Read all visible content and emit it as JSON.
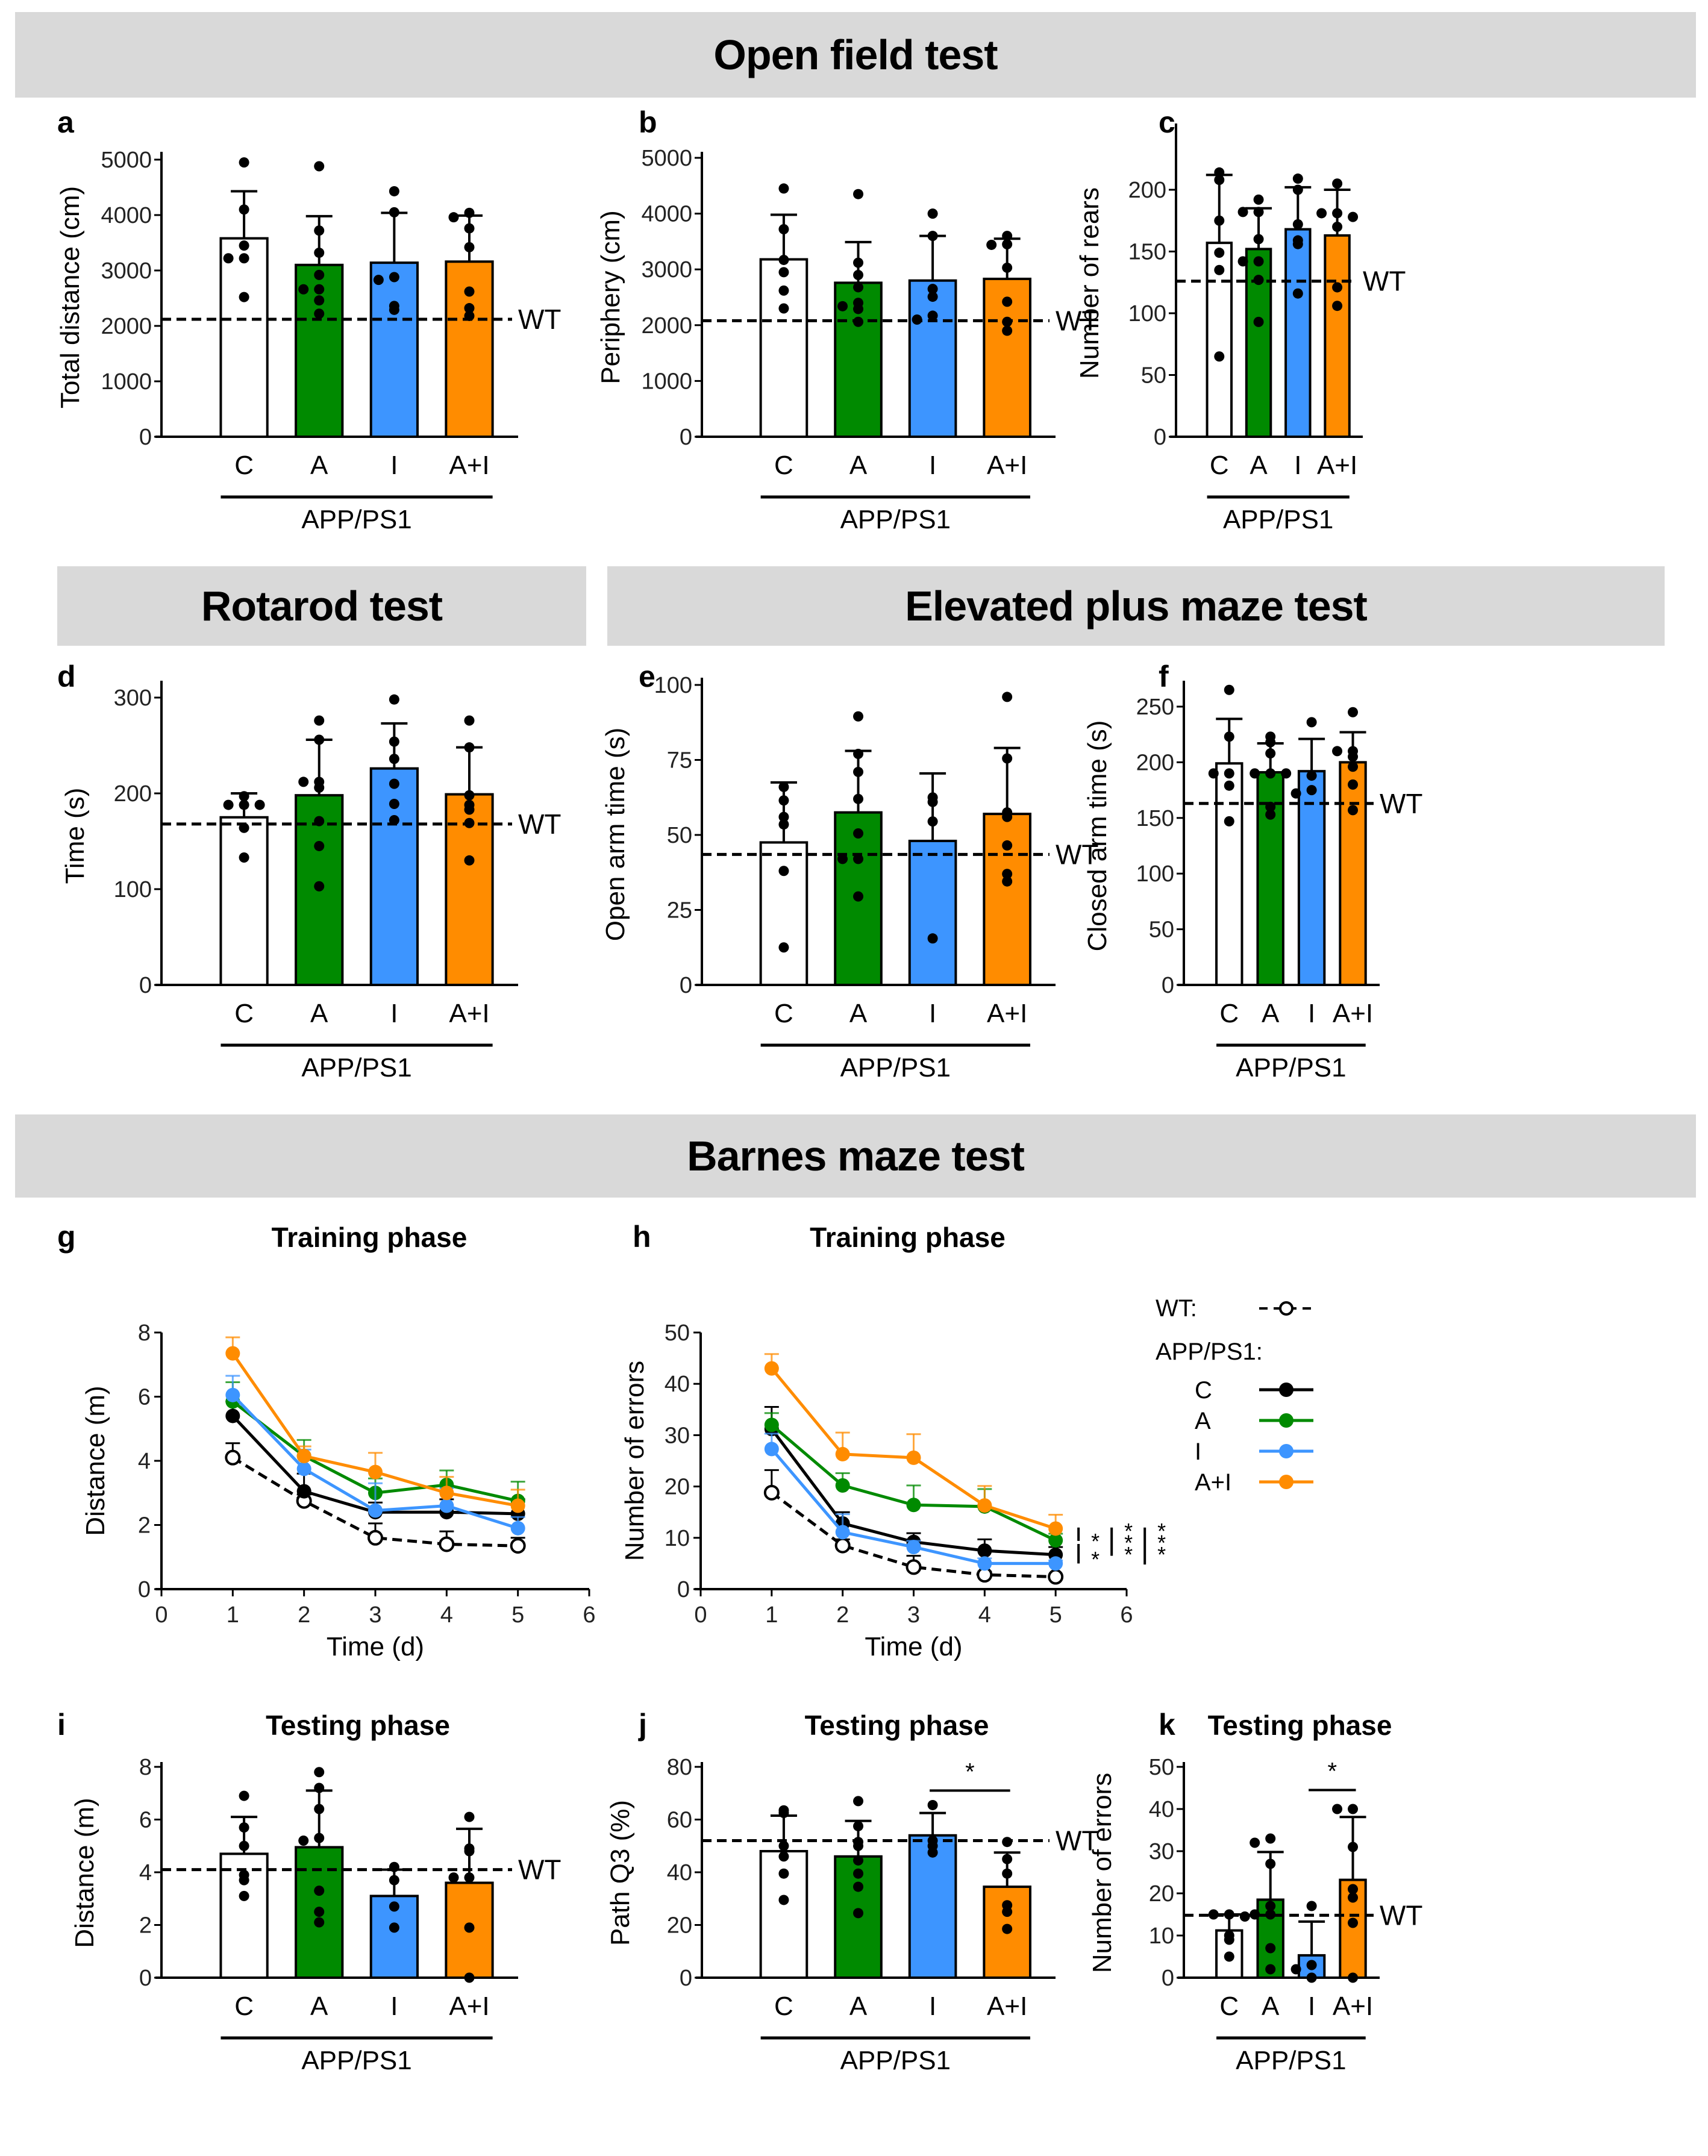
{
  "sections": [
    {
      "id": "open-field",
      "title": "Open field test"
    },
    {
      "id": "rotarod",
      "title": "Rotarod test"
    },
    {
      "id": "epm",
      "title": "Elevated plus maze test"
    },
    {
      "id": "barnes",
      "title": "Barnes maze test"
    }
  ],
  "colors": {
    "C": "#ffffff",
    "A": "#008a00",
    "I": "#3d95ff",
    "A+I": "#ff8c00",
    "C_line": "#000000",
    "WT_line": "#000000"
  },
  "group_label": "APP/PS1",
  "wt_label": "WT",
  "legend": {
    "wt_label": "WT:",
    "app_label": "APP/PS1:",
    "items": [
      {
        "label": "C",
        "color": "#000000"
      },
      {
        "label": "A",
        "color": "#008a00"
      },
      {
        "label": "I",
        "color": "#3d95ff"
      },
      {
        "label": "A+I",
        "color": "#ff8c00"
      }
    ]
  },
  "chart_data": [
    {
      "panel": "a",
      "type": "bar",
      "title": "",
      "ylabel": "Total distance (cm)",
      "categories": [
        "C",
        "A",
        "I",
        "A+I"
      ],
      "ylim": [
        0,
        5000
      ],
      "yticks": [
        0,
        1000,
        2000,
        3000,
        4000,
        5000
      ],
      "values": [
        3580,
        3100,
        3140,
        3160
      ],
      "errors": [
        850,
        880,
        900,
        830
      ],
      "wt": 2120,
      "points": [
        [
          4950,
          4100,
          3450,
          3220,
          3220,
          2520
        ],
        [
          4880,
          3720,
          3320,
          2920,
          2660,
          2660,
          2460,
          2220
        ],
        [
          4430,
          4050,
          2880,
          2830,
          2360,
          2290
        ],
        [
          4040,
          3960,
          3760,
          3420,
          2620,
          2320,
          2180
        ]
      ]
    },
    {
      "panel": "b",
      "type": "bar",
      "title": "",
      "ylabel": "Periphery (cm)",
      "categories": [
        "C",
        "A",
        "I",
        "A+I"
      ],
      "ylim": [
        0,
        5000
      ],
      "yticks": [
        0,
        1000,
        2000,
        3000,
        4000,
        5000
      ],
      "values": [
        3180,
        2760,
        2800,
        2830
      ],
      "errors": [
        800,
        730,
        800,
        720
      ],
      "wt": 2080,
      "points": [
        [
          4450,
          3720,
          3170,
          2950,
          2620,
          2300
        ],
        [
          4350,
          3120,
          2900,
          2680,
          2400,
          2340,
          2290,
          2060
        ],
        [
          4000,
          3600,
          2650,
          2510,
          2170,
          2100
        ],
        [
          3600,
          3450,
          3440,
          3030,
          2420,
          2060,
          1900
        ]
      ]
    },
    {
      "panel": "c",
      "type": "bar",
      "title": "",
      "ylabel": "Number of rears",
      "categories": [
        "C",
        "A",
        "I",
        "A+I"
      ],
      "ylim": [
        0,
        225
      ],
      "yticks": [
        0,
        50,
        100,
        150,
        200
      ],
      "values": [
        157,
        152,
        168,
        163
      ],
      "errors": [
        55,
        33,
        34,
        37
      ],
      "wt": 126,
      "points": [
        [
          214,
          208,
          175,
          149,
          135,
          65
        ],
        [
          192,
          182,
          182,
          160,
          142,
          142,
          127,
          93
        ],
        [
          209,
          200,
          172,
          159,
          156,
          116
        ],
        [
          205,
          181,
          181,
          178,
          170,
          121,
          106
        ]
      ]
    },
    {
      "panel": "d",
      "type": "bar",
      "title": "",
      "ylabel": "Time (s)",
      "categories": [
        "C",
        "A",
        "I",
        "A+I"
      ],
      "ylim": [
        0,
        320
      ],
      "yticks": [
        0,
        100,
        200,
        300
      ],
      "values": [
        175,
        198,
        226,
        199
      ],
      "errors": [
        25,
        58,
        47,
        49
      ],
      "wt": 168,
      "points": [
        [
          197,
          188,
          188,
          188,
          164,
          133
        ],
        [
          276,
          256,
          212,
          212,
          206,
          171,
          145,
          103
        ],
        [
          298,
          254,
          236,
          210,
          189,
          172
        ],
        [
          276,
          248,
          198,
          188,
          183,
          169,
          130
        ]
      ]
    },
    {
      "panel": "e",
      "type": "bar",
      "title": "",
      "ylabel": "Open arm time (s)",
      "categories": [
        "C",
        "A",
        "I",
        "A+I"
      ],
      "ylim": [
        0,
        100
      ],
      "yticks": [
        0,
        25,
        50,
        75,
        100
      ],
      "values": [
        47.5,
        57.5,
        48,
        57
      ],
      "errors": [
        20,
        20.5,
        22.5,
        22
      ],
      "wt": 43.5,
      "points": [
        [
          66,
          61.5,
          56,
          53.5,
          38,
          12.5
        ],
        [
          89.5,
          77,
          71,
          62,
          50.5,
          42,
          42,
          29.5
        ],
        [
          62.5,
          61,
          54.5,
          15.5
        ],
        [
          96,
          75.5,
          57.5,
          56,
          46.5,
          37,
          34.5
        ]
      ]
    },
    {
      "panel": "f",
      "type": "bar",
      "title": "",
      "ylabel": "Closed arm time (s)",
      "categories": [
        "C",
        "A",
        "I",
        "A+I"
      ],
      "ylim": [
        0,
        275
      ],
      "yticks": [
        0,
        50,
        100,
        150,
        200,
        250
      ],
      "values": [
        199,
        191,
        192,
        200
      ],
      "errors": [
        40,
        26,
        29,
        27
      ],
      "wt": 163,
      "points": [
        [
          265,
          223,
          190,
          190,
          179,
          147
        ],
        [
          223,
          218,
          208,
          190,
          190,
          190,
          160,
          153
        ],
        [
          236,
          188,
          175,
          172
        ],
        [
          245,
          210,
          210,
          205,
          196,
          180,
          157
        ]
      ]
    },
    {
      "panel": "g",
      "type": "line",
      "title": "Training phase",
      "xlabel": "Time (d)",
      "ylabel": "Distance (m)",
      "x": [
        1,
        2,
        3,
        4,
        5
      ],
      "xlim": [
        0,
        6
      ],
      "xticks": [
        0,
        1,
        2,
        3,
        4,
        5,
        6
      ],
      "ylim": [
        0,
        8
      ],
      "yticks": [
        0,
        2,
        4,
        6,
        8
      ],
      "series": [
        {
          "name": "WT",
          "values": [
            4.1,
            2.75,
            1.6,
            1.4,
            1.35
          ],
          "errors": [
            0.45,
            0.2,
            0.45,
            0.4,
            0.25
          ],
          "dashed": true
        },
        {
          "name": "C",
          "values": [
            5.4,
            3.05,
            2.4,
            2.4,
            2.35
          ],
          "errors": [
            0.45,
            0.55,
            0.3,
            0.4,
            0.45
          ]
        },
        {
          "name": "A",
          "values": [
            5.85,
            4.15,
            3.0,
            3.25,
            2.75
          ],
          "errors": [
            0.6,
            0.5,
            0.45,
            0.45,
            0.6
          ]
        },
        {
          "name": "I",
          "values": [
            6.05,
            3.75,
            2.45,
            2.6,
            1.9
          ],
          "errors": [
            0.6,
            0.6,
            0.85,
            0.55,
            0.35
          ]
        },
        {
          "name": "A+I",
          "values": [
            7.35,
            4.15,
            3.65,
            3.0,
            2.6
          ],
          "errors": [
            0.5,
            0.3,
            0.6,
            0.5,
            0.5
          ]
        }
      ]
    },
    {
      "panel": "h",
      "type": "line",
      "title": "Training phase",
      "xlabel": "Time (d)",
      "ylabel": "Number of errors",
      "x": [
        1,
        2,
        3,
        4,
        5
      ],
      "xlim": [
        0,
        6
      ],
      "xticks": [
        0,
        1,
        2,
        3,
        4,
        5,
        6
      ],
      "ylim": [
        0,
        50
      ],
      "yticks": [
        0,
        10,
        20,
        30,
        40,
        50
      ],
      "series": [
        {
          "name": "WT",
          "values": [
            18.8,
            8.5,
            4.3,
            2.8,
            2.4
          ],
          "errors": [
            4.4,
            1.2,
            2.2,
            0.6,
            0.4
          ],
          "dashed": true
        },
        {
          "name": "C",
          "values": [
            31.2,
            12.8,
            9.2,
            7.5,
            6.7
          ],
          "errors": [
            4.3,
            2.2,
            1.7,
            2.2,
            1.5
          ]
        },
        {
          "name": "A",
          "values": [
            32.0,
            20.2,
            16.4,
            16.1,
            9.5
          ],
          "errors": [
            2.3,
            2.4,
            3.8,
            3.4,
            1.3
          ]
        },
        {
          "name": "I",
          "values": [
            27.3,
            11.1,
            8.2,
            5.0,
            5.0
          ],
          "errors": [
            3.0,
            3.5,
            1.2,
            1.0,
            0.6
          ]
        },
        {
          "name": "A+I",
          "values": [
            43.0,
            26.3,
            25.6,
            16.3,
            11.8
          ],
          "errors": [
            2.8,
            4.2,
            4.6,
            3.8,
            2.7
          ]
        }
      ],
      "annotations": [
        {
          "text": "*",
          "comparison": "A+I vs A"
        },
        {
          "text": "*",
          "comparison": "A vs C"
        },
        {
          "text": "***",
          "comparison": "A+I vs C"
        },
        {
          "text": "***",
          "comparison": "A+I vs I"
        }
      ]
    },
    {
      "panel": "i",
      "type": "bar",
      "title": "Testing phase",
      "ylabel": "Distance (m)",
      "categories": [
        "C",
        "A",
        "I",
        "A+I"
      ],
      "ylim": [
        0,
        8
      ],
      "yticks": [
        0,
        2,
        4,
        6,
        8
      ],
      "values": [
        4.7,
        4.95,
        3.1,
        3.6
      ],
      "errors": [
        1.4,
        2.15,
        1.0,
        2.05
      ],
      "wt": 4.1,
      "points": [
        [
          6.9,
          5.7,
          5.0,
          3.9,
          3.7,
          3.1
        ],
        [
          7.8,
          7.2,
          6.4,
          5.3,
          5.2,
          3.3,
          2.5,
          2.1
        ],
        [
          4.2,
          3.7,
          2.7,
          1.9
        ],
        [
          6.1,
          4.9,
          4.8,
          3.8,
          3.8,
          1.9,
          0.0
        ]
      ]
    },
    {
      "panel": "j",
      "type": "bar",
      "title": "Testing phase",
      "ylabel": "Path Q3 (%)",
      "categories": [
        "C",
        "A",
        "I",
        "A+I"
      ],
      "ylim": [
        0,
        80
      ],
      "yticks": [
        0,
        20,
        40,
        60,
        80
      ],
      "values": [
        48,
        46,
        54,
        34.5
      ],
      "errors": [
        13.5,
        13.5,
        8.5,
        13
      ],
      "wt": 52,
      "points": [
        [
          63.5,
          62.5,
          50,
          46,
          39.5,
          29.5
        ],
        [
          67,
          57.5,
          51.5,
          50,
          44.5,
          39.5,
          34.5,
          24.5
        ],
        [
          65.5,
          52,
          50,
          47.5
        ],
        [
          51.5,
          45,
          39.5,
          27.5,
          25,
          18.5
        ]
      ],
      "significance": [
        {
          "text": "*",
          "from": "I",
          "to": "A+I"
        }
      ]
    },
    {
      "panel": "k",
      "type": "bar",
      "title": "Testing phase",
      "ylabel": "Number of errors",
      "categories": [
        "C",
        "A",
        "I",
        "A+I"
      ],
      "ylim": [
        0,
        50
      ],
      "yticks": [
        0,
        10,
        20,
        30,
        40,
        50
      ],
      "values": [
        11.2,
        18.5,
        5.3,
        23.2
      ],
      "errors": [
        3.8,
        11.3,
        8.0,
        14.9
      ],
      "wt": 14.8,
      "points": [
        [
          15,
          15,
          14.5,
          10,
          9,
          5
        ],
        [
          33,
          32,
          27,
          17,
          15,
          15,
          7,
          2
        ],
        [
          17,
          3,
          2,
          0
        ],
        [
          40,
          40,
          31,
          21,
          19,
          13,
          0
        ]
      ],
      "significance": [
        {
          "text": "*",
          "from": "I",
          "to": "A+I"
        }
      ]
    }
  ]
}
